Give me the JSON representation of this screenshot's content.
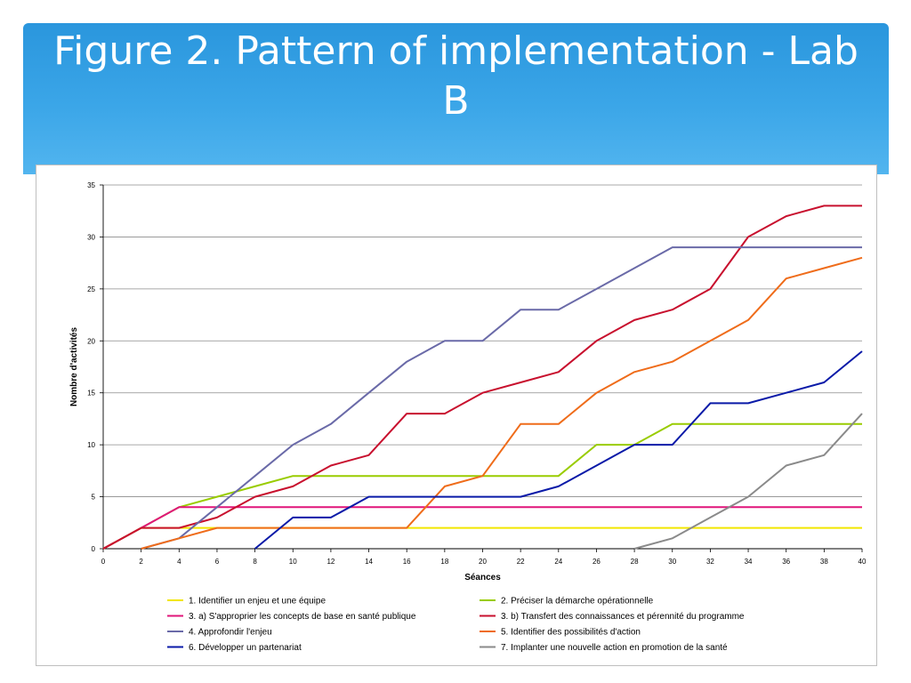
{
  "slide": {
    "title": "Figure 2. Pattern of implementation - Lab B",
    "banner_color": "#3ba6e8"
  },
  "chart_data": {
    "type": "line",
    "title": "",
    "xlabel": "Séances",
    "ylabel": "Nombre d'activités",
    "x": [
      0,
      2,
      4,
      6,
      8,
      10,
      12,
      14,
      16,
      18,
      20,
      22,
      24,
      26,
      28,
      30,
      32,
      34,
      36,
      38,
      40
    ],
    "xticks": [
      "0",
      "2",
      "4",
      "6",
      "8",
      "10",
      "12",
      "14",
      "16",
      "18",
      "20",
      "22",
      "24",
      "26",
      "28",
      "30",
      "32",
      "34",
      "36",
      "38",
      "40"
    ],
    "yticks": [
      "0",
      "5",
      "10",
      "15",
      "20",
      "25",
      "30",
      "35"
    ],
    "xlim": [
      0,
      40
    ],
    "ylim": [
      0,
      35
    ],
    "grid": true,
    "legend_position": "bottom",
    "series": [
      {
        "name": "1. Identifier un enjeu et une équipe",
        "color": "#f2e600",
        "values": [
          0,
          2,
          2,
          2,
          2,
          2,
          2,
          2,
          2,
          2,
          2,
          2,
          2,
          2,
          2,
          2,
          2,
          2,
          2,
          2,
          2
        ]
      },
      {
        "name": "2. Préciser la démarche opérationnelle",
        "color": "#99cc00",
        "values": [
          0,
          2,
          4,
          5,
          6,
          7,
          7,
          7,
          7,
          7,
          7,
          7,
          7,
          10,
          10,
          12,
          12,
          12,
          12,
          12,
          12
        ]
      },
      {
        "name": "3. a) S'approprier les concepts de base en santé publique",
        "color": "#e0157a",
        "values": [
          0,
          2,
          4,
          4,
          4,
          4,
          4,
          4,
          4,
          4,
          4,
          4,
          4,
          4,
          4,
          4,
          4,
          4,
          4,
          4,
          4
        ]
      },
      {
        "name": "3. b) Transfert des connaissances et pérennité du programme",
        "color": "#c8102e",
        "values": [
          0,
          2,
          2,
          3,
          5,
          6,
          8,
          9,
          13,
          13,
          15,
          16,
          17,
          20,
          22,
          23,
          25,
          30,
          32,
          33,
          33
        ]
      },
      {
        "name": "4. Approfondir l'enjeu",
        "color": "#6a6aa8",
        "values": [
          null,
          0,
          1,
          4,
          7,
          10,
          12,
          15,
          18,
          20,
          20,
          23,
          23,
          25,
          27,
          29,
          29,
          29,
          29,
          29,
          29
        ]
      },
      {
        "name": "5. Identifier des possibilités d'action",
        "color": "#ef6c1a",
        "values": [
          null,
          0,
          1,
          2,
          2,
          2,
          2,
          2,
          2,
          6,
          7,
          12,
          12,
          15,
          17,
          18,
          20,
          22,
          26,
          27,
          28
        ]
      },
      {
        "name": "6. Développer un partenariat",
        "color": "#0a1aa8",
        "values": [
          null,
          null,
          null,
          null,
          0,
          3,
          3,
          5,
          5,
          5,
          5,
          5,
          6,
          8,
          10,
          10,
          14,
          14,
          15,
          16,
          19
        ]
      },
      {
        "name": "7. Implanter une nouvelle action en promotion de la santé",
        "color": "#8a8a8a",
        "values": [
          null,
          null,
          null,
          null,
          null,
          null,
          null,
          null,
          null,
          null,
          null,
          null,
          null,
          null,
          0,
          1,
          3,
          5,
          8,
          9,
          13
        ]
      }
    ]
  }
}
